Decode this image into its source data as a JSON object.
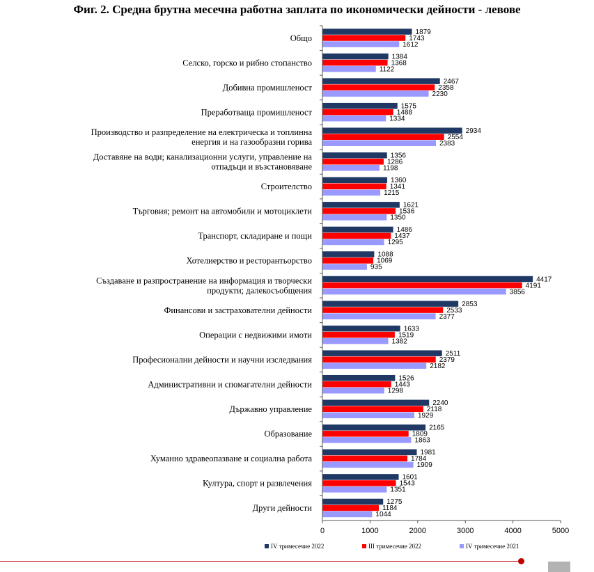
{
  "chart_data": {
    "type": "bar",
    "orientation": "horizontal",
    "title": "Фиг. 2. Средна брутна месечна работна заплата по икономически дейности - левове",
    "categories": [
      "Общо",
      "Селско, горско и рибно стопанство",
      "Добивна промишленост",
      "Преработваща промишленост",
      "Производство и разпределение на електрическа и топлинна енергия и на газообразни горива",
      "Доставяне на води; канализационни услуги, управление на отпадъци и възстановяване",
      "Строителство",
      "Търговия; ремонт на автомобили и мотоциклети",
      "Транспорт, складиране и пощи",
      "Хотелиерство и ресторантьорство",
      "Създаване и разпространение на информация и творчески продукти; далекосъобщения",
      "Финансови и застрахователни дейности",
      "Операции с недвижими имоти",
      "Професионални дейности и научни изследвания",
      "Административни и спомагателни дейности",
      "Държавно управление",
      "Образование",
      "Хуманно здравеопазване и социална работа",
      "Култура, спорт и развлечения",
      "Други дейности"
    ],
    "category_lines": [
      [
        "Общо"
      ],
      [
        "Селско, горско и рибно стопанство"
      ],
      [
        "Добивна промишленост"
      ],
      [
        "Преработваща промишленост"
      ],
      [
        "Производство и разпределение на електрическа и топлинна",
        "енергия и на газообразни горива"
      ],
      [
        "Доставяне на води; канализационни услуги, управление на",
        "отпадъци и възстановяване"
      ],
      [
        "Строителство"
      ],
      [
        "Търговия; ремонт на автомобили и мотоциклети"
      ],
      [
        "Транспорт, складиране и пощи"
      ],
      [
        "Хотелиерство и ресторантьорство"
      ],
      [
        "Създаване и разпространение на информация и творчески",
        "продукти; далекосъобщения"
      ],
      [
        "Финансови и застрахователни дейности"
      ],
      [
        "Операции с недвижими имоти"
      ],
      [
        "Професионални дейности и научни изследвания"
      ],
      [
        "Административни и спомагателни дейности"
      ],
      [
        "Държавно управление"
      ],
      [
        "Образование"
      ],
      [
        "Хуманно здравеопазване и социална работа"
      ],
      [
        "Култура, спорт и развлечения"
      ],
      [
        "Други дейности"
      ]
    ],
    "series": [
      {
        "name": "IV тримесечие 2022",
        "color": "#1f3864",
        "values": [
          1879,
          1384,
          2467,
          1575,
          2934,
          1356,
          1360,
          1621,
          1486,
          1088,
          4417,
          2853,
          1633,
          2511,
          1526,
          2240,
          2165,
          1981,
          1601,
          1275
        ]
      },
      {
        "name": "III тримесечие 2022",
        "color": "#ff0000",
        "values": [
          1743,
          1368,
          2358,
          1488,
          2554,
          1286,
          1341,
          1536,
          1437,
          1069,
          4191,
          2533,
          1519,
          2379,
          1443,
          2118,
          1809,
          1784,
          1543,
          1184
        ]
      },
      {
        "name": "IV тримесечие 2021",
        "color": "#9999ff",
        "values": [
          1612,
          1122,
          2230,
          1334,
          2383,
          1198,
          1215,
          1350,
          1295,
          935,
          3856,
          2377,
          1382,
          2182,
          1298,
          1929,
          1863,
          1909,
          1351,
          1044
        ]
      }
    ],
    "xlim": [
      0,
      5000
    ],
    "xticks": [
      "0",
      "1000",
      "2000",
      "3000",
      "4000",
      "5000"
    ],
    "legend_position": "bottom",
    "grid": false
  }
}
